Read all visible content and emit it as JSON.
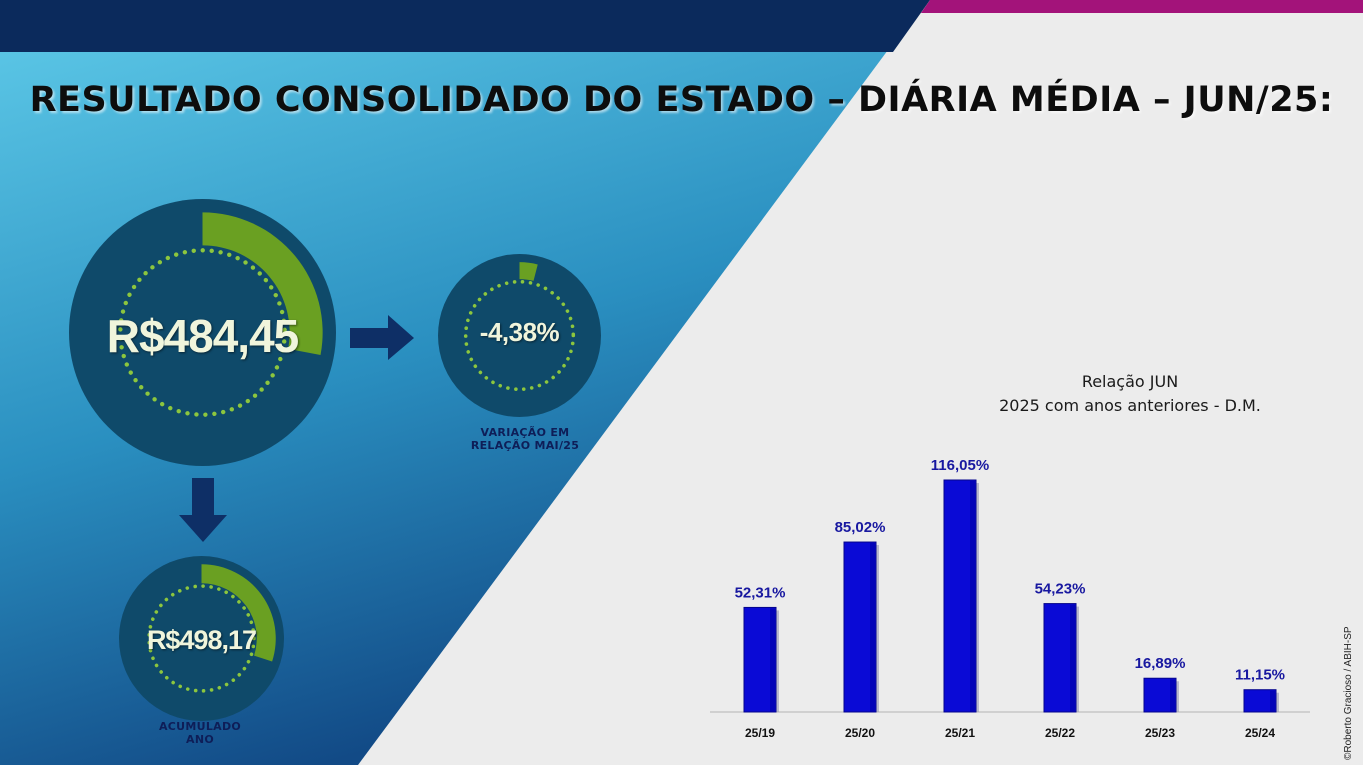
{
  "title": "RESULTADO CONSOLIDADO DO ESTADO – DIÁRIA MÉDIA – JUN/25:",
  "colors": {
    "navy": "#0b2a5c",
    "magenta": "#a3137a",
    "cyan": "#5ec6e6",
    "circle_fill": "#0f4a6a",
    "ring_green": "#6aa022",
    "dot_green": "#8cc63e",
    "bar_blue": "#0a0ad6",
    "label_blue": "#1818a0"
  },
  "kpis": {
    "daily_average": {
      "value": "R$484,45",
      "fill": 0.28
    },
    "variation": {
      "value": "-4,38%",
      "fill": 0.04,
      "caption_line1": "VARIAÇÃO EM",
      "caption_line2": "RELAÇÃO MAI/25"
    },
    "accumulated": {
      "value": "R$498,17",
      "fill": 0.3,
      "caption_line1": "ACUMULADO",
      "caption_line2": "ANO"
    }
  },
  "chart_data": {
    "type": "bar",
    "title_line1": "Relação JUN",
    "title_line2": "2025 com anos anteriores  - D.M.",
    "categories": [
      "25/19",
      "25/20",
      "25/21",
      "25/22",
      "25/23",
      "25/24"
    ],
    "values": [
      52.31,
      85.02,
      116.05,
      54.23,
      16.89,
      11.15
    ],
    "value_labels": [
      "52,31%",
      "85,02%",
      "116,05%",
      "54,23%",
      "16,89%",
      "11,15%"
    ],
    "ylim": [
      0,
      116.05
    ],
    "grid": false
  },
  "credit": "©Roberto Gracioso / ABIH-SP"
}
